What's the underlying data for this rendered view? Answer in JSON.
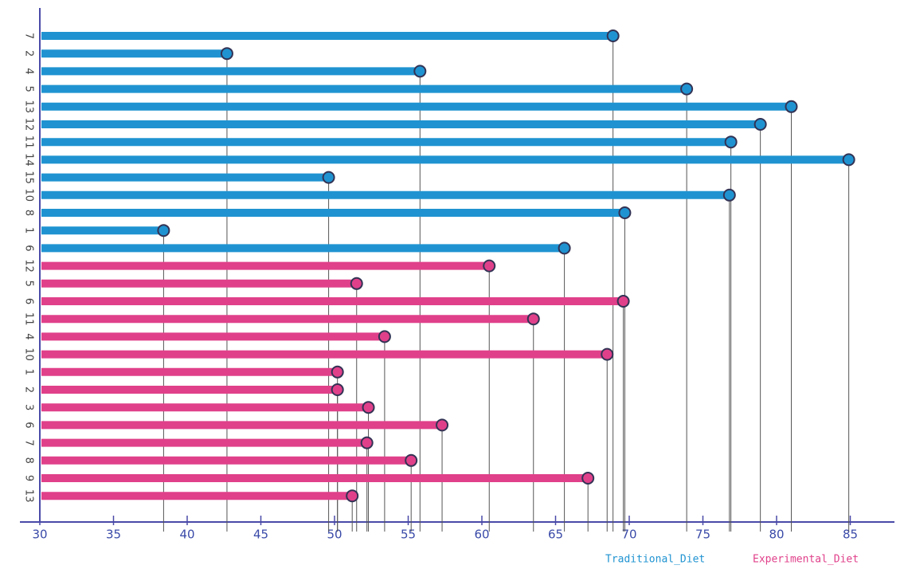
{
  "chart_data": {
    "type": "lollipop",
    "xlim": [
      30,
      88
    ],
    "xticks": [
      30,
      35,
      40,
      45,
      50,
      55,
      60,
      65,
      70,
      75,
      80,
      85
    ],
    "series": [
      {
        "name": "Traditional_Diet",
        "color": "#1f93d1",
        "categories": [
          "7",
          "2",
          "4",
          "5",
          "13",
          "12",
          "11",
          "14",
          "15",
          "10",
          "8",
          "1",
          "6"
        ],
        "values": [
          68.9,
          42.7,
          55.8,
          73.9,
          81.0,
          78.9,
          76.9,
          84.9,
          49.6,
          76.8,
          69.7,
          38.4,
          65.6
        ]
      },
      {
        "name": "Experimental_Diet",
        "color": "#e0408a",
        "categories": [
          "12",
          "5",
          "6",
          "11",
          "4",
          "10",
          "1",
          "2",
          "3",
          "6",
          "7",
          "8",
          "9",
          "13"
        ],
        "values": [
          60.5,
          51.5,
          69.6,
          63.5,
          53.4,
          68.5,
          50.2,
          50.2,
          52.3,
          57.3,
          52.2,
          55.2,
          67.2,
          51.2
        ]
      }
    ]
  }
}
